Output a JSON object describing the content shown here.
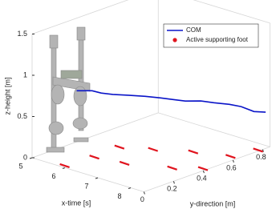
{
  "chart_data": {
    "type": "line3d",
    "xlabel": "x-time [s]",
    "ylabel": "y-direction [m]",
    "zlabel": "z-height [m]",
    "xlim": [
      5,
      8.4
    ],
    "ylim": [
      0,
      0.85
    ],
    "zlim": [
      0,
      1.5
    ],
    "xticks": [
      5,
      6,
      7,
      8
    ],
    "yticks": [
      0,
      0.2,
      0.4,
      0.6,
      0.8
    ],
    "zticks": [
      0,
      0.5,
      1,
      1.5
    ],
    "legend": "upper right",
    "series": [
      {
        "name": "COM",
        "color": "#0a14c8",
        "style": "line",
        "x": [
          5,
          5.29,
          5.43,
          5.65,
          5.94,
          6.23,
          6.52,
          6.74,
          6.95,
          7.24,
          7.46,
          7.75,
          7.97,
          8.18,
          8.4
        ],
        "y": [
          0.3,
          0.34,
          0.37,
          0.4,
          0.44,
          0.49,
          0.53,
          0.57,
          0.6,
          0.64,
          0.68,
          0.72,
          0.75,
          0.79,
          0.82
        ],
        "z": [
          0.62,
          0.63,
          0.6,
          0.59,
          0.59,
          0.58,
          0.57,
          0.55,
          0.54,
          0.55,
          0.53,
          0.52,
          0.5,
          0.44,
          0.44
        ]
      },
      {
        "name": "Active supporting foot",
        "color": "#e0141e",
        "style": "dash",
        "x": [
          5.9,
          5.99,
          5.94,
          6.77,
          6.6,
          7.77,
          7.37,
          8.3,
          8.19,
          8.35
        ],
        "y": [
          0.02,
          0.2,
          0.38,
          0.23,
          0.46,
          0.33,
          0.56,
          0.42,
          0.63,
          0.78
        ],
        "z": [
          0,
          0,
          0,
          0,
          0,
          0,
          0,
          0,
          0,
          0
        ]
      }
    ]
  }
}
